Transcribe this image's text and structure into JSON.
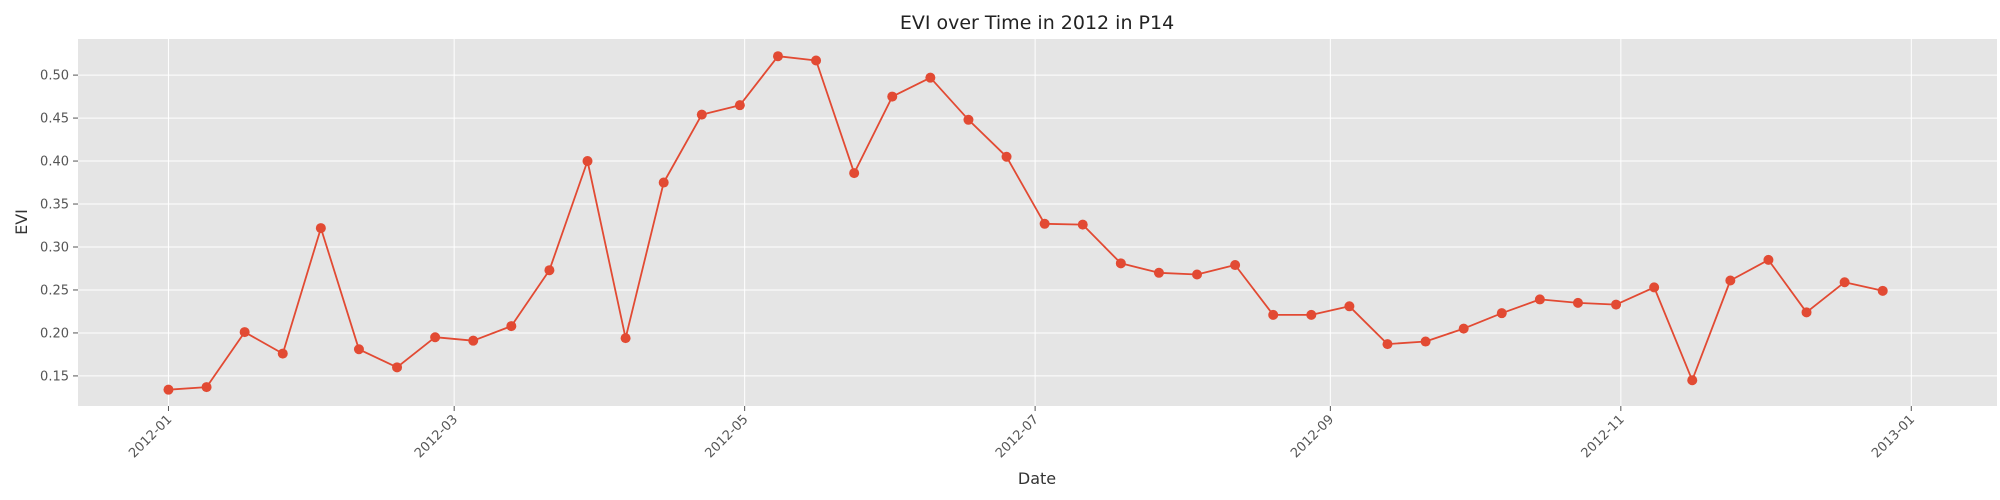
{
  "chart_data": {
    "type": "line",
    "title": "EVI over Time in 2012 in P14",
    "xlabel": "Date",
    "ylabel": "EVI",
    "xlim": [
      "2011-12-13",
      "2013-01-19"
    ],
    "ylim": [
      0.115,
      0.542
    ],
    "x_ticks": [
      "2012-01-01",
      "2012-03-01",
      "2012-05-01",
      "2012-07-01",
      "2012-09-01",
      "2012-11-01",
      "2013-01-01"
    ],
    "x_tick_labels": [
      "2012-01",
      "2012-03",
      "2012-05",
      "2012-07",
      "2012-09",
      "2012-11",
      "2013-01"
    ],
    "y_ticks": [
      0.15,
      0.2,
      0.25,
      0.3,
      0.35,
      0.4,
      0.45,
      0.5
    ],
    "y_tick_labels": [
      "0.15",
      "0.20",
      "0.25",
      "0.30",
      "0.35",
      "0.40",
      "0.45",
      "0.50"
    ],
    "grid": true,
    "color": "#E24A33",
    "plot_background": "#E5E5E5",
    "series": [
      {
        "x": [
          "2012-01-01",
          "2012-01-09",
          "2012-01-17",
          "2012-01-25",
          "2012-02-02",
          "2012-02-10",
          "2012-02-18",
          "2012-02-26",
          "2012-03-05",
          "2012-03-13",
          "2012-03-21",
          "2012-03-29",
          "2012-04-06",
          "2012-04-14",
          "2012-04-22",
          "2012-04-30",
          "2012-05-08",
          "2012-05-16",
          "2012-05-24",
          "2012-06-01",
          "2012-06-09",
          "2012-06-17",
          "2012-06-25",
          "2012-07-03",
          "2012-07-11",
          "2012-07-19",
          "2012-07-27",
          "2012-08-04",
          "2012-08-12",
          "2012-08-20",
          "2012-08-28",
          "2012-09-05",
          "2012-09-13",
          "2012-09-21",
          "2012-09-29",
          "2012-10-07",
          "2012-10-15",
          "2012-10-23",
          "2012-10-31",
          "2012-11-08",
          "2012-11-16",
          "2012-11-24",
          "2012-12-02",
          "2012-12-10",
          "2012-12-18",
          "2012-12-26"
        ],
        "y": [
          0.134,
          0.137,
          0.201,
          0.176,
          0.322,
          0.181,
          0.16,
          0.195,
          0.191,
          0.208,
          0.273,
          0.4,
          0.194,
          0.375,
          0.454,
          0.465,
          0.522,
          0.517,
          0.386,
          0.475,
          0.497,
          0.448,
          0.405,
          0.327,
          0.326,
          0.281,
          0.27,
          0.268,
          0.279,
          0.221,
          0.221,
          0.231,
          0.187,
          0.19,
          0.205,
          0.223,
          0.239,
          0.235,
          0.233,
          0.253,
          0.145,
          0.261,
          0.285,
          0.224,
          0.259,
          0.249
        ]
      }
    ]
  }
}
